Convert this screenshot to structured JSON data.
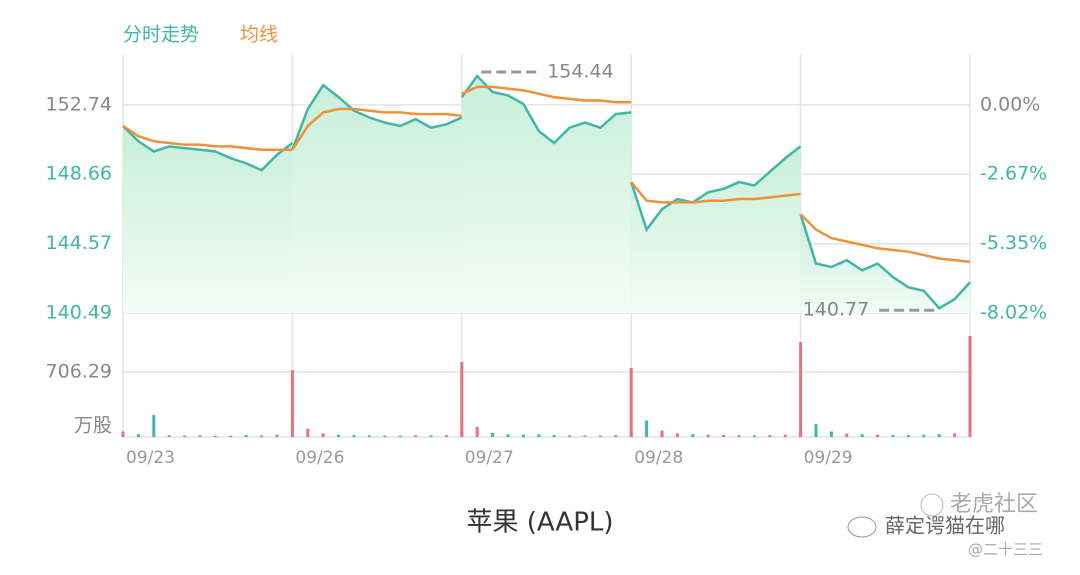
{
  "chart_data": {
    "type": "intraday",
    "legend": [
      {
        "name": "分时走势",
        "color": "#3fb6a8"
      },
      {
        "name": "均线",
        "color": "#f0913a"
      }
    ],
    "ylim": [
      140.49,
      155.68
    ],
    "yticks": [
      152.74,
      148.66,
      144.57,
      140.49
    ],
    "y2lim": [
      -8.02,
      1.92
    ],
    "y2ticks": [
      {
        "value": 0,
        "label": "0.00%"
      },
      {
        "value": -2.67,
        "label": "-2.67%"
      },
      {
        "value": -5.35,
        "label": "-5.35%"
      },
      {
        "value": -8.02,
        "label": "-8.02%"
      }
    ],
    "volume_lim": [
      0,
      1162
    ],
    "volume_ticks": [
      706.29
    ],
    "volume_unit": "万股",
    "max_label": 154.44,
    "min_label": 140.77,
    "days": [
      {
        "date": "09/23",
        "price": [
          151.5,
          150.6,
          150.0,
          150.3,
          150.2,
          150.1,
          150.0,
          149.6,
          149.3,
          148.9,
          149.8,
          150.5
        ],
        "avg": [
          151.5,
          150.9,
          150.6,
          150.5,
          150.4,
          150.4,
          150.3,
          150.3,
          150.2,
          150.1,
          150.1,
          150.1
        ],
        "volume": [
          60,
          30,
          240,
          20,
          15,
          18,
          12,
          14,
          20,
          16,
          25,
          70
        ]
      },
      {
        "date": "09/26",
        "price": [
          150.1,
          152.5,
          153.9,
          153.2,
          152.4,
          152.0,
          151.7,
          151.5,
          151.9,
          151.4,
          151.6,
          152.0
        ],
        "avg": [
          150.1,
          151.5,
          152.3,
          152.5,
          152.5,
          152.4,
          152.3,
          152.3,
          152.2,
          152.2,
          152.2,
          152.1
        ],
        "volume": [
          727,
          90,
          40,
          25,
          20,
          18,
          15,
          14,
          18,
          16,
          20,
          60
        ]
      },
      {
        "date": "09/27",
        "price": [
          153.2,
          154.44,
          153.5,
          153.3,
          152.8,
          151.2,
          150.5,
          151.4,
          151.7,
          151.4,
          152.2,
          152.3
        ],
        "avg": [
          153.4,
          153.8,
          153.8,
          153.7,
          153.6,
          153.4,
          153.2,
          153.1,
          153.0,
          153.0,
          152.9,
          152.9
        ],
        "volume": [
          815,
          110,
          45,
          30,
          25,
          30,
          20,
          18,
          16,
          15,
          20,
          55
        ]
      },
      {
        "date": "09/28",
        "price": [
          148.2,
          145.4,
          146.6,
          147.2,
          147.0,
          147.6,
          147.8,
          148.2,
          148.0,
          148.8,
          149.6,
          150.3
        ],
        "avg": [
          148.2,
          147.1,
          147.0,
          147.0,
          147.0,
          147.1,
          147.1,
          147.2,
          147.2,
          147.3,
          147.4,
          147.5
        ],
        "volume": [
          750,
          180,
          70,
          40,
          30,
          25,
          22,
          20,
          18,
          20,
          25,
          60
        ]
      },
      {
        "date": "09/29",
        "price": [
          146.3,
          143.4,
          143.2,
          143.6,
          143.0,
          143.4,
          142.6,
          142.0,
          141.8,
          140.77,
          141.3,
          142.3
        ],
        "avg": [
          146.3,
          145.4,
          144.9,
          144.7,
          144.5,
          144.3,
          144.2,
          144.1,
          143.9,
          143.7,
          143.6,
          143.5
        ],
        "volume": [
          1032,
          140,
          60,
          35,
          30,
          25,
          22,
          20,
          25,
          30,
          40,
          1097
        ]
      }
    ]
  },
  "watermark": {
    "site": "老虎社区",
    "author": "薛定谔猫在哪",
    "handle": "@二十三三"
  },
  "title": "苹果 (AAPL)"
}
